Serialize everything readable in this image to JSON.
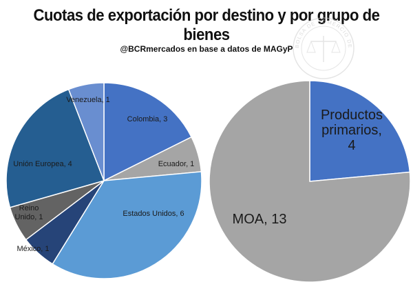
{
  "title_lines": [
    "Cuotas de exportación por destino y por grupo de",
    "bienes"
  ],
  "subtitle": "@BCRmercados en base a datos de MAGyP",
  "watermark": {
    "text": "BOLSA DE COMERCIO DE ROSARIO",
    "color": "#d0d0d0"
  },
  "chart_data": [
    {
      "type": "pie",
      "title": "",
      "slices": [
        {
          "label": "Colombia",
          "value": 3,
          "color": "#4472c4",
          "data_label": "Colombia, 3"
        },
        {
          "label": "Ecuador",
          "value": 1,
          "color": "#a5a5a5",
          "data_label": "Ecuador, 1"
        },
        {
          "label": "Estados Unidos",
          "value": 6,
          "color": "#5b9bd5",
          "data_label": "Estados Unidos, 6"
        },
        {
          "label": "México",
          "value": 1,
          "color": "#264478",
          "data_label": "México, 1"
        },
        {
          "label": "Reino Unido",
          "value": 1,
          "color": "#636363",
          "data_label": "Reino Unido, 1"
        },
        {
          "label": "Unión Europea",
          "value": 4,
          "color": "#255e91",
          "data_label": "Unión Europea, 4"
        },
        {
          "label": "Venezuela",
          "value": 1,
          "color": "#698ed0",
          "data_label": "Venezuela, 1"
        }
      ]
    },
    {
      "type": "pie",
      "title": "",
      "slices": [
        {
          "label": "Productos primarios",
          "value": 4,
          "color": "#4472c4",
          "data_label": "Productos primarios, 4"
        },
        {
          "label": "MOA",
          "value": 13,
          "color": "#a5a5a5",
          "data_label": "MOA, 13"
        }
      ]
    }
  ]
}
